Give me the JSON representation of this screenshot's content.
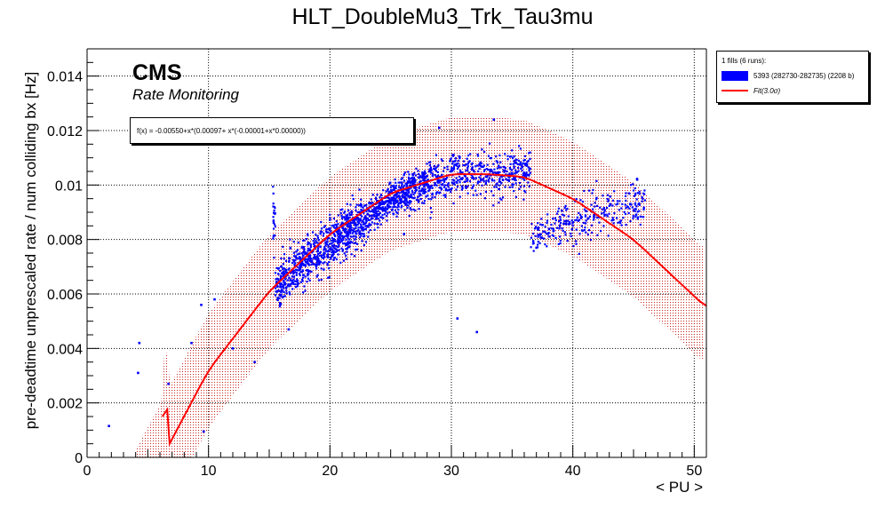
{
  "chart_data": {
    "type": "scatter",
    "title": "HLT_DoubleMu3_Trk_Tau3mu",
    "xlabel": "< PU >",
    "ylabel": "pre-deadtime unprescaled rate / num colliding bx [Hz]",
    "xlim": [
      0,
      51
    ],
    "ylim": [
      0,
      0.015
    ],
    "x_ticks": [
      "0",
      "10",
      "20",
      "30",
      "40",
      "50"
    ],
    "y_ticks": [
      "0",
      "0.002",
      "0.004",
      "0.006",
      "0.008",
      "0.01",
      "0.012",
      "0.014"
    ],
    "grid": true,
    "legend_position": "top-right-outside",
    "legend_header": "1 fills (6 runs):",
    "series": [
      {
        "name": "5393 (282730-282735) (2208 b)",
        "color": "#0000ff",
        "clusters": [
          {
            "x_range": [
              15.3,
              23.0
            ],
            "trend": [
              [
                15.5,
                0.0062
              ],
              [
                17,
                0.0068
              ],
              [
                19,
                0.0075
              ],
              [
                21,
                0.0082
              ],
              [
                23,
                0.0088
              ]
            ],
            "spread": 0.00042,
            "count": 850
          },
          {
            "x_range": [
              23.0,
              28.0
            ],
            "trend": [
              [
                23,
                0.0088
              ],
              [
                25,
                0.0094
              ],
              [
                27,
                0.0099
              ],
              [
                28,
                0.0101
              ]
            ],
            "spread": 0.00032,
            "count": 500
          },
          {
            "x_range": [
              28.0,
              36.5
            ],
            "trend": [
              [
                28,
                0.0101
              ],
              [
                30,
                0.0103
              ],
              [
                32,
                0.0105
              ],
              [
                34,
                0.0104
              ],
              [
                36.5,
                0.0104
              ]
            ],
            "spread": 0.0004,
            "count": 480
          },
          {
            "x_range": [
              36.5,
              46.0
            ],
            "trend": [
              [
                36.5,
                0.008
              ],
              [
                38,
                0.0083
              ],
              [
                40,
                0.0086
              ],
              [
                42,
                0.0089
              ],
              [
                44,
                0.0091
              ],
              [
                46,
                0.0093
              ]
            ],
            "spread": 0.0004,
            "count": 300
          }
        ],
        "outliers": [
          [
            1.8,
            0.00115
          ],
          [
            4.2,
            0.0031
          ],
          [
            4.3,
            0.0042
          ],
          [
            6.7,
            0.0027
          ],
          [
            8.6,
            0.0042
          ],
          [
            9.4,
            0.0056
          ],
          [
            9.6,
            0.00095
          ],
          [
            10.5,
            0.0058
          ],
          [
            12.0,
            0.004
          ],
          [
            13.8,
            0.0035
          ],
          [
            16.6,
            0.0047
          ],
          [
            30.5,
            0.0051
          ],
          [
            32.1,
            0.0046
          ],
          [
            26.1,
            0.0082
          ],
          [
            29.0,
            0.0121
          ],
          [
            33.5,
            0.0124
          ],
          [
            37.0,
            0.0077
          ],
          [
            45.3,
            0.0102
          ]
        ]
      },
      {
        "name": "Fit(3.0σ)",
        "color": "#ff0000",
        "type": "line",
        "fit_range": [
          6.2,
          51
        ],
        "band_halfwidth": 0.0021
      }
    ],
    "fit_label": "f(x) = -0.00550+x*(0.00097+ x*(-0.00001+x*0.00000))",
    "annotations": [
      "CMS",
      "Rate Monitoring"
    ]
  }
}
